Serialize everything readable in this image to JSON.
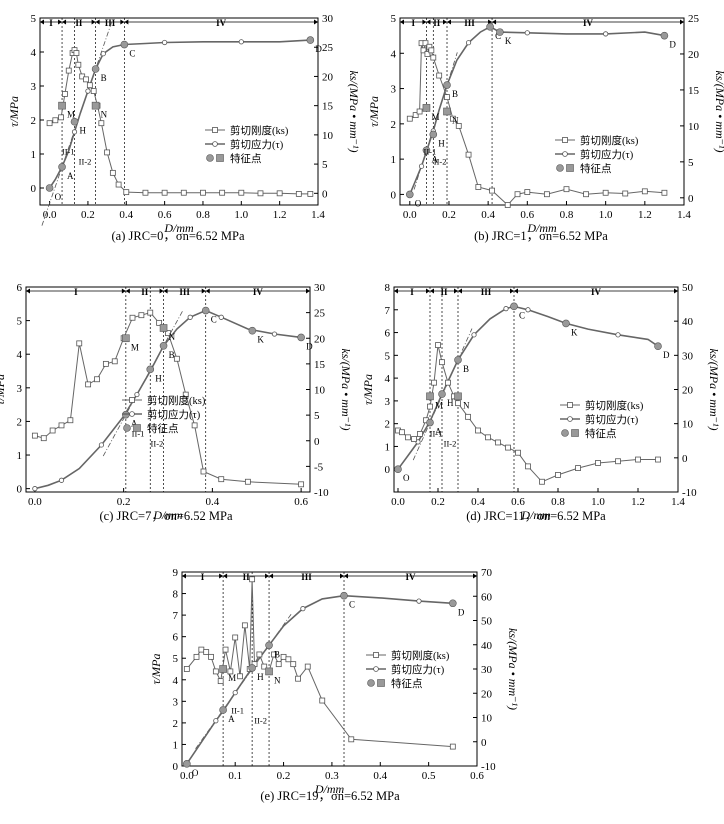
{
  "legend": {
    "ks": "剪切刚度(ks)",
    "tau": "剪切应力(τ)",
    "points": "特征点"
  },
  "charts": [
    {
      "id": "a",
      "caption": "(a) JRC=0，σn=6.52 MPa",
      "xlabel": "D/mm",
      "ylabel_left": "τ/MPa",
      "ylabel_right": "ks/(MPa • mm⁻¹)",
      "xticks": [
        "0.0",
        "0.2",
        "0.4",
        "0.6",
        "0.8",
        "1.0",
        "1.2",
        "1.4"
      ],
      "yticks_left": [
        "0",
        "1",
        "2",
        "3",
        "4",
        "5"
      ],
      "yticks_right": [
        "0",
        "5",
        "10",
        "15",
        "20",
        "25",
        "30"
      ],
      "stages": [
        "I",
        "II",
        "III",
        "IV"
      ],
      "substages": [
        "II-1",
        "II-2"
      ]
    },
    {
      "id": "b",
      "caption": "(b) JRC=1，σn=6.52 MPa",
      "xlabel": "D/mm",
      "ylabel_left": "τ/MPa",
      "ylabel_right": "ks/(MPa • mm⁻¹)",
      "xticks": [
        "0.0",
        "0.2",
        "0.4",
        "0.6",
        "0.8",
        "1.0",
        "1.2",
        "1.4"
      ],
      "yticks_left": [
        "0",
        "1",
        "2",
        "3",
        "4",
        "5"
      ],
      "yticks_right": [
        "0",
        "5",
        "10",
        "15",
        "20",
        "25"
      ],
      "stages": [
        "I",
        "II",
        "III",
        "IV"
      ],
      "substages": [
        "II-1",
        "II-2"
      ]
    },
    {
      "id": "c",
      "caption": "(c) JRC=7，σn=6.52 MPa",
      "xlabel": "D/mm",
      "ylabel_left": "τ/MPa",
      "ylabel_right": "ks/(MPa • mm⁻¹)",
      "xticks": [
        "0.0",
        "0.2",
        "0.4",
        "0.6"
      ],
      "yticks_left": [
        "0",
        "1",
        "2",
        "3",
        "4",
        "5",
        "6"
      ],
      "yticks_right": [
        "-10",
        "-5",
        "0",
        "5",
        "10",
        "15",
        "20",
        "25",
        "30"
      ],
      "stages": [
        "I",
        "II",
        "III",
        "IV"
      ],
      "substages": [
        "II-1",
        "II-2"
      ]
    },
    {
      "id": "d",
      "caption": "(d) JRC=11，σn=6.52 MPa",
      "xlabel": "D/mm",
      "ylabel_left": "τ/MPa",
      "ylabel_right": "ks/(MPa • mm⁻¹)",
      "xticks": [
        "0.0",
        "0.2",
        "0.4",
        "0.6",
        "0.8",
        "1.0",
        "1.2",
        "1.4"
      ],
      "yticks_left": [
        "0",
        "1",
        "2",
        "3",
        "4",
        "5",
        "6",
        "7",
        "8"
      ],
      "yticks_right": [
        "-10",
        "0",
        "10",
        "20",
        "30",
        "40",
        "50"
      ],
      "stages": [
        "I",
        "II",
        "III",
        "IV"
      ],
      "substages": [
        "II-1",
        "II-2"
      ]
    },
    {
      "id": "e",
      "caption": "(e) JRC=19，σn=6.52 MPa",
      "xlabel": "D/mm",
      "ylabel_left": "τ/MPa",
      "ylabel_right": "ks/(MPa • mm⁻¹)",
      "xticks": [
        "0.0",
        "0.1",
        "0.2",
        "0.3",
        "0.4",
        "0.5",
        "0.6"
      ],
      "yticks_left": [
        "0",
        "1",
        "2",
        "3",
        "4",
        "5",
        "6",
        "7",
        "8",
        "9"
      ],
      "yticks_right": [
        "-10",
        "0",
        "10",
        "20",
        "30",
        "40",
        "50",
        "60",
        "70"
      ],
      "stages": [
        "I",
        "II",
        "III",
        "IV"
      ],
      "substages": [
        "II-1",
        "II-2"
      ]
    }
  ],
  "chart_data": [
    {
      "panel": "a",
      "type": "line",
      "xlim": [
        -0.05,
        1.4
      ],
      "ylim": [
        -0.5,
        5
      ],
      "y2lim": [
        -2,
        30
      ],
      "stage_bounds": [
        0.065,
        0.24,
        0.39
      ],
      "substage_bounds": [
        0.065,
        0.13,
        0.24
      ],
      "series": [
        {
          "name": "剪切应力(τ)",
          "axis": "left",
          "x": [
            0,
            0.03,
            0.065,
            0.1,
            0.13,
            0.16,
            0.2,
            0.24,
            0.28,
            0.33,
            0.39,
            0.5,
            0.6,
            0.8,
            1.0,
            1.2,
            1.36
          ],
          "y": [
            0,
            0.25,
            0.62,
            1.1,
            1.65,
            2.2,
            2.85,
            3.5,
            3.95,
            4.15,
            4.22,
            4.25,
            4.28,
            4.3,
            4.3,
            4.3,
            4.35
          ]
        },
        {
          "name": "剪切刚度(ks)",
          "axis": "right",
          "x": [
            0,
            0.03,
            0.06,
            0.08,
            0.1,
            0.12,
            0.13,
            0.14,
            0.15,
            0.17,
            0.19,
            0.21,
            0.23,
            0.25,
            0.27,
            0.3,
            0.33,
            0.36,
            0.4,
            0.5,
            0.6,
            0.7,
            0.8,
            0.9,
            1.0,
            1.1,
            1.2,
            1.3,
            1.36
          ],
          "y": [
            12,
            12.5,
            13,
            17,
            21,
            24,
            24.5,
            24,
            22,
            20,
            19.5,
            18.5,
            17.5,
            15,
            12,
            7,
            3.5,
            1.5,
            0.2,
            0.1,
            0.1,
            0.1,
            0.1,
            0.1,
            0.1,
            0,
            0,
            -0.1,
            -0.1
          ]
        }
      ],
      "points": [
        {
          "label": "O",
          "x": 0,
          "y": 0,
          "axis": "left"
        },
        {
          "label": "A",
          "x": 0.065,
          "y": 0.62,
          "axis": "left"
        },
        {
          "label": "H",
          "x": 0.13,
          "y": 1.95,
          "axis": "left"
        },
        {
          "label": "B",
          "x": 0.24,
          "y": 3.5,
          "axis": "left"
        },
        {
          "label": "C",
          "x": 0.39,
          "y": 4.22,
          "axis": "left"
        },
        {
          "label": "D",
          "x": 1.36,
          "y": 4.35,
          "axis": "left"
        },
        {
          "label": "M",
          "x": 0.065,
          "y": 15,
          "axis": "right"
        },
        {
          "label": "N",
          "x": 0.24,
          "y": 15,
          "axis": "right"
        }
      ]
    },
    {
      "panel": "b",
      "type": "line",
      "xlim": [
        -0.05,
        1.4
      ],
      "ylim": [
        -0.3,
        5
      ],
      "y2lim": [
        -1,
        25
      ],
      "stage_bounds": [
        0.085,
        0.19,
        0.42
      ],
      "substage_bounds": [
        0.085,
        0.12,
        0.19
      ],
      "series": [
        {
          "name": "剪切应力(τ)",
          "axis": "left",
          "x": [
            0,
            0.03,
            0.06,
            0.09,
            0.12,
            0.15,
            0.19,
            0.24,
            0.3,
            0.36,
            0.41,
            0.46,
            0.6,
            0.8,
            1.0,
            1.2,
            1.3
          ],
          "y": [
            0,
            0.4,
            0.8,
            1.3,
            1.8,
            2.4,
            3.1,
            3.8,
            4.3,
            4.6,
            4.75,
            4.6,
            4.58,
            4.55,
            4.55,
            4.6,
            4.5
          ]
        },
        {
          "name": "剪切刚度(ks)",
          "axis": "right",
          "x": [
            0,
            0.03,
            0.05,
            0.06,
            0.07,
            0.08,
            0.09,
            0.1,
            0.11,
            0.12,
            0.15,
            0.19,
            0.22,
            0.25,
            0.3,
            0.35,
            0.42,
            0.5,
            0.55,
            0.6,
            0.7,
            0.8,
            0.9,
            1.0,
            1.1,
            1.2,
            1.3
          ],
          "y": [
            11,
            11.5,
            12,
            21.5,
            20.5,
            21.5,
            20,
            21,
            20.5,
            19.5,
            17,
            14,
            11,
            10,
            6,
            1.5,
            1,
            -1,
            0.5,
            0.8,
            0.5,
            1.2,
            0.5,
            0.7,
            0.6,
            0.9,
            0.7
          ]
        }
      ],
      "points": [
        {
          "label": "O",
          "x": 0,
          "y": 0,
          "axis": "left"
        },
        {
          "label": "A",
          "x": 0.085,
          "y": 1.25,
          "axis": "left"
        },
        {
          "label": "H",
          "x": 0.12,
          "y": 1.7,
          "axis": "left"
        },
        {
          "label": "B",
          "x": 0.19,
          "y": 3.1,
          "axis": "left"
        },
        {
          "label": "C",
          "x": 0.41,
          "y": 4.75,
          "axis": "left"
        },
        {
          "label": "K",
          "x": 0.46,
          "y": 4.6,
          "axis": "left"
        },
        {
          "label": "D",
          "x": 1.3,
          "y": 4.5,
          "axis": "left"
        },
        {
          "label": "M",
          "x": 0.085,
          "y": 12.5,
          "axis": "right"
        },
        {
          "label": "N",
          "x": 0.19,
          "y": 12,
          "axis": "right"
        }
      ]
    },
    {
      "panel": "c",
      "type": "line",
      "xlim": [
        -0.02,
        0.62
      ],
      "ylim": [
        -0.1,
        6
      ],
      "y2lim": [
        -10,
        30
      ],
      "stage_bounds": [
        0.205,
        0.29,
        0.385
      ],
      "substage_bounds": [
        0.205,
        0.26,
        0.29
      ],
      "series": [
        {
          "name": "剪切应力(τ)",
          "axis": "left",
          "x": [
            0,
            0.03,
            0.06,
            0.1,
            0.15,
            0.2,
            0.23,
            0.26,
            0.29,
            0.32,
            0.35,
            0.385,
            0.42,
            0.48,
            0.54,
            0.6
          ],
          "y": [
            0,
            0.1,
            0.25,
            0.6,
            1.3,
            2.15,
            2.8,
            3.5,
            4.25,
            4.75,
            5.1,
            5.3,
            5.1,
            4.75,
            4.6,
            4.5
          ]
        },
        {
          "name": "剪切刚度(ks)",
          "axis": "right",
          "x": [
            0,
            0.02,
            0.04,
            0.06,
            0.08,
            0.1,
            0.12,
            0.14,
            0.16,
            0.18,
            0.2,
            0.22,
            0.24,
            0.26,
            0.28,
            0.3,
            0.32,
            0.34,
            0.36,
            0.38,
            0.42,
            0.48,
            0.6
          ],
          "y": [
            1,
            0.5,
            2,
            3,
            4,
            19,
            11,
            12,
            15,
            15.5,
            20,
            24,
            24.5,
            25,
            23,
            21,
            16,
            9,
            3,
            -6,
            -7.5,
            -8,
            -8.5
          ]
        }
      ],
      "points": [
        {
          "label": "A",
          "x": 0.205,
          "y": 2.2,
          "axis": "left"
        },
        {
          "label": "H",
          "x": 0.26,
          "y": 3.55,
          "axis": "left"
        },
        {
          "label": "B",
          "x": 0.29,
          "y": 4.25,
          "axis": "left"
        },
        {
          "label": "C",
          "x": 0.385,
          "y": 5.3,
          "axis": "left"
        },
        {
          "label": "K",
          "x": 0.49,
          "y": 4.7,
          "axis": "left"
        },
        {
          "label": "D",
          "x": 0.6,
          "y": 4.5,
          "axis": "left"
        },
        {
          "label": "M",
          "x": 0.205,
          "y": 20,
          "axis": "right"
        },
        {
          "label": "N",
          "x": 0.29,
          "y": 22,
          "axis": "right"
        }
      ]
    },
    {
      "panel": "d",
      "type": "line",
      "xlim": [
        -0.02,
        1.4
      ],
      "ylim": [
        -1,
        8
      ],
      "y2lim": [
        -10,
        50
      ],
      "stage_bounds": [
        0.16,
        0.3,
        0.58
      ],
      "substage_bounds": [
        0.16,
        0.22,
        0.3
      ],
      "series": [
        {
          "name": "剪切应力(τ)",
          "axis": "left",
          "x": [
            0,
            0.05,
            0.1,
            0.16,
            0.22,
            0.3,
            0.38,
            0.46,
            0.54,
            0.58,
            0.65,
            0.75,
            0.84,
            0.95,
            1.1,
            1.25,
            1.3
          ],
          "y": [
            0,
            0.6,
            1.2,
            2.1,
            3.3,
            4.8,
            5.9,
            6.6,
            7.05,
            7.15,
            7.0,
            6.7,
            6.4,
            6.15,
            5.9,
            5.7,
            5.4
          ]
        },
        {
          "name": "剪切刚度(ks)",
          "axis": "right",
          "x": [
            0,
            0.02,
            0.05,
            0.08,
            0.11,
            0.14,
            0.16,
            0.18,
            0.2,
            0.22,
            0.25,
            0.28,
            0.3,
            0.35,
            0.4,
            0.45,
            0.5,
            0.55,
            0.6,
            0.65,
            0.72,
            0.8,
            0.9,
            1.0,
            1.1,
            1.2,
            1.3
          ],
          "y": [
            8,
            7.5,
            6,
            5.5,
            7,
            11,
            15,
            22,
            33,
            28,
            22,
            18,
            16,
            12,
            8,
            6,
            4.5,
            3,
            1.5,
            -2.5,
            -7,
            -5,
            -3,
            -1.5,
            -1,
            -0.5,
            -0.5
          ]
        }
      ],
      "points": [
        {
          "label": "O",
          "x": 0,
          "y": 0,
          "axis": "left"
        },
        {
          "label": "A",
          "x": 0.16,
          "y": 2.05,
          "axis": "left"
        },
        {
          "label": "H",
          "x": 0.22,
          "y": 3.3,
          "axis": "left"
        },
        {
          "label": "B",
          "x": 0.3,
          "y": 4.8,
          "axis": "left"
        },
        {
          "label": "C",
          "x": 0.58,
          "y": 7.15,
          "axis": "left"
        },
        {
          "label": "K",
          "x": 0.84,
          "y": 6.4,
          "axis": "left"
        },
        {
          "label": "D",
          "x": 1.3,
          "y": 5.4,
          "axis": "left"
        },
        {
          "label": "M",
          "x": 0.16,
          "y": 18,
          "axis": "right"
        },
        {
          "label": "N",
          "x": 0.3,
          "y": 18,
          "axis": "right"
        }
      ]
    },
    {
      "panel": "e",
      "type": "line",
      "xlim": [
        -0.01,
        0.6
      ],
      "ylim": [
        0,
        9
      ],
      "y2lim": [
        -10,
        70
      ],
      "stage_bounds": [
        0.075,
        0.17,
        0.325
      ],
      "substage_bounds": [
        0.075,
        0.135,
        0.17
      ],
      "series": [
        {
          "name": "剪切应力(τ)",
          "axis": "left",
          "x": [
            0,
            0.03,
            0.06,
            0.075,
            0.1,
            0.135,
            0.17,
            0.2,
            0.24,
            0.28,
            0.325,
            0.4,
            0.48,
            0.55
          ],
          "y": [
            0.1,
            1.1,
            2.1,
            2.55,
            3.4,
            4.55,
            5.6,
            6.5,
            7.3,
            7.75,
            7.9,
            7.8,
            7.65,
            7.55
          ]
        },
        {
          "name": "剪切刚度(ks)",
          "axis": "right",
          "x": [
            0,
            0.02,
            0.03,
            0.04,
            0.05,
            0.06,
            0.07,
            0.08,
            0.09,
            0.1,
            0.11,
            0.12,
            0.13,
            0.135,
            0.14,
            0.15,
            0.16,
            0.17,
            0.18,
            0.19,
            0.2,
            0.21,
            0.22,
            0.23,
            0.25,
            0.28,
            0.34,
            0.55
          ],
          "y": [
            30,
            35,
            38,
            37,
            35,
            29,
            25,
            38,
            29,
            43,
            27,
            48,
            30,
            67,
            32,
            36,
            31,
            29,
            36,
            32,
            35,
            34,
            32,
            26,
            31,
            17,
            1,
            -2
          ]
        }
      ],
      "points": [
        {
          "label": "O",
          "x": 0,
          "y": 0.1,
          "axis": "left"
        },
        {
          "label": "A",
          "x": 0.075,
          "y": 2.6,
          "axis": "left"
        },
        {
          "label": "H",
          "x": 0.135,
          "y": 4.55,
          "axis": "left"
        },
        {
          "label": "B",
          "x": 0.17,
          "y": 5.6,
          "axis": "left"
        },
        {
          "label": "C",
          "x": 0.325,
          "y": 7.9,
          "axis": "left"
        },
        {
          "label": "D",
          "x": 0.55,
          "y": 7.55,
          "axis": "left"
        },
        {
          "label": "M",
          "x": 0.075,
          "y": 30,
          "axis": "right"
        },
        {
          "label": "N",
          "x": 0.17,
          "y": 29,
          "axis": "right"
        }
      ]
    }
  ]
}
